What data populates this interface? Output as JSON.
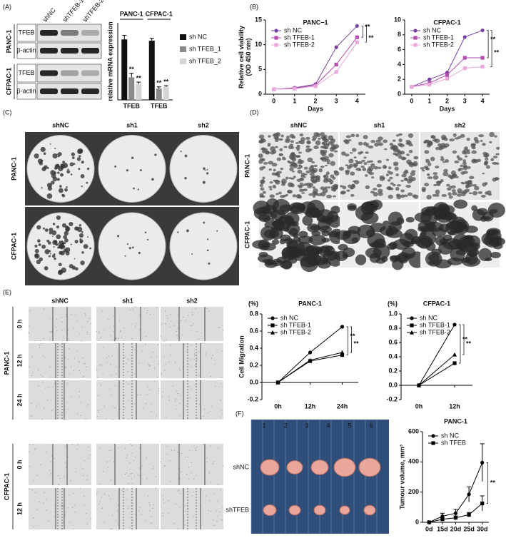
{
  "panel_labels": [
    "(A)",
    "(B)",
    "(C)",
    "(D)",
    "(E)",
    "(F)"
  ],
  "blot": {
    "lanes": [
      "shNC",
      "shTFEB-1",
      "shTFEB-2"
    ],
    "cell_lines": [
      "PANC-1",
      "CFPAC-1"
    ],
    "proteins": [
      "TFEB",
      "β-actin",
      "TFEB",
      "β-actin"
    ]
  },
  "colony": {
    "columns": [
      "shNC",
      "sh1",
      "sh2"
    ],
    "rows": [
      "PANC-1",
      "CFPAC-1"
    ]
  },
  "invasion": {
    "columns": [
      "shNC",
      "sh1",
      "sh2"
    ],
    "rows": [
      "PANC-1",
      "CFPAC-1"
    ]
  },
  "wound": {
    "columns": [
      "shNC",
      "sh1",
      "sh2"
    ],
    "groups": [
      "PANC-1",
      "CFPAC-1"
    ],
    "times": [
      [
        "0 h",
        "12 h",
        "24 h"
      ],
      [
        "0 h",
        "12 h"
      ]
    ]
  },
  "xenograft": {
    "rows": [
      "shNC",
      "shTFEB"
    ],
    "ruler": [
      "1",
      "2",
      "3",
      "4",
      "5",
      "6"
    ]
  },
  "chart_data": [
    {
      "type": "bar",
      "groups": [
        "PANC-1",
        "CFPAC-1"
      ],
      "categories": [
        "TFEB",
        "TFEB"
      ],
      "y_label": "relative mRNA expression",
      "ylim": [
        0,
        1.3
      ],
      "legend": "right",
      "series": [
        {
          "name": "sh NC",
          "color": "#111111",
          "values": [
            1.02,
            1.0
          ],
          "errors": [
            0.07,
            0.04
          ]
        },
        {
          "name": "sh TFEB_1",
          "color": "#8a8a8a",
          "values": [
            0.38,
            0.19
          ],
          "errors": [
            0.07,
            0.03
          ]
        },
        {
          "name": "sh TFEB_2",
          "color": "#d4d4d4",
          "values": [
            0.27,
            0.22
          ],
          "errors": [
            0.03,
            0.02
          ]
        }
      ],
      "annotations": [
        "**",
        "**",
        "**",
        "**"
      ]
    },
    {
      "type": "line",
      "title": "PANC−1",
      "x_label": "Days",
      "y_label": "Relative cell viability\n(OD 450 nm)",
      "x": [
        0,
        1,
        2,
        3,
        4
      ],
      "xlim": [
        -0.4,
        4.4
      ],
      "xticks": [
        0,
        1,
        2,
        3,
        4
      ],
      "ylim": [
        0,
        15
      ],
      "yticks": [
        0,
        5,
        10,
        15
      ],
      "legend": "upper left",
      "series": [
        {
          "name": "sh NC",
          "color": "#7a3f9e",
          "marker": "circle",
          "values": [
            1,
            1.3,
            2,
            9.5,
            13.8
          ]
        },
        {
          "name": "sh TFEB-1",
          "color": "#b24db0",
          "marker": "square",
          "values": [
            1,
            1.2,
            1.8,
            6,
            11.5
          ]
        },
        {
          "name": "sh TFEB-2",
          "color": "#eaa8dc",
          "marker": "square",
          "values": [
            1,
            1.1,
            1.6,
            4.5,
            10.5
          ]
        }
      ],
      "annotations": [
        "**",
        "**"
      ]
    },
    {
      "type": "line",
      "title": "CFPAC-1",
      "x_label": "Days",
      "x": [
        0,
        1,
        2,
        3,
        4
      ],
      "xlim": [
        -0.4,
        4.4
      ],
      "xticks": [
        0,
        1,
        2,
        3,
        4
      ],
      "ylim": [
        0,
        10
      ],
      "yticks": [
        0,
        2,
        4,
        6,
        8,
        10
      ],
      "legend": "upper left",
      "series": [
        {
          "name": "sh NC",
          "color": "#7a3f9e",
          "marker": "circle",
          "values": [
            1,
            2,
            2.9,
            7.7,
            8.6
          ]
        },
        {
          "name": "sh TFEB-1",
          "color": "#b24db0",
          "marker": "square",
          "values": [
            1,
            1.5,
            2.6,
            4.9,
            4.9
          ]
        },
        {
          "name": "sh TFEB-2",
          "color": "#eaa8dc",
          "marker": "square",
          "values": [
            1,
            1.3,
            2.1,
            3.5,
            3.7
          ]
        }
      ],
      "annotations": [
        "**",
        "**"
      ]
    },
    {
      "type": "line",
      "title": "PANC-1",
      "unit_label": "(%)",
      "y_label": "Cell Migration",
      "categories": [
        "0h",
        "12h",
        "24h"
      ],
      "ylim": [
        -0.2,
        0.8
      ],
      "yticks": [
        -0.2,
        {
          "value": 0,
          "label": "0.0"
        },
        0.2,
        0.4,
        0.6,
        0.8
      ],
      "legend": "upper left",
      "series": [
        {
          "name": "sh NC",
          "color": "#000000",
          "marker": "circle",
          "values": [
            0,
            0.35,
            0.65
          ]
        },
        {
          "name": "sh TFEB-1",
          "color": "#000000",
          "marker": "square",
          "values": [
            0,
            0.25,
            0.32
          ]
        },
        {
          "name": "sh TFEB-2",
          "color": "#000000",
          "marker": "triangle",
          "values": [
            0,
            0.26,
            0.35
          ]
        }
      ],
      "annotations": [
        "**",
        "**"
      ]
    },
    {
      "type": "line",
      "title": "CFPAC-1",
      "unit_label": "(%)",
      "categories": [
        "0h",
        "12h"
      ],
      "ylim": [
        -0.2,
        1.0
      ],
      "yticks": [
        -0.2,
        {
          "value": 0,
          "label": "0.0"
        },
        0.2,
        0.4,
        0.6,
        0.8,
        {
          "value": 1,
          "label": "1.0"
        }
      ],
      "legend": "upper left",
      "series": [
        {
          "name": "sh NC",
          "color": "#000000",
          "marker": "circle",
          "values": [
            0,
            0.85
          ]
        },
        {
          "name": "sh TFEB-1",
          "color": "#000000",
          "marker": "square",
          "values": [
            0,
            0.31
          ]
        },
        {
          "name": "sh TFEB-2",
          "color": "#000000",
          "marker": "triangle",
          "values": [
            0,
            0.43
          ]
        }
      ],
      "annotations": [
        "**",
        "**"
      ]
    },
    {
      "type": "line",
      "title": "PANC-1",
      "y_label": "Tumour volume, mm³",
      "categories": [
        "0d",
        "15d",
        "20d",
        "25d",
        "30d"
      ],
      "ylim": [
        0,
        600
      ],
      "yticks": [
        0,
        200,
        400,
        600
      ],
      "legend": "upper left",
      "series": [
        {
          "name": "sh NC",
          "color": "#000000",
          "marker": "circle",
          "values": [
            0,
            40,
            60,
            185,
            395
          ],
          "errors": [
            0,
            20,
            25,
            50,
            125
          ]
        },
        {
          "name": "sh TFEB",
          "color": "#000000",
          "marker": "square",
          "values": [
            0,
            20,
            30,
            50,
            125
          ],
          "errors": [
            0,
            10,
            12,
            15,
            50
          ]
        }
      ],
      "annotations": [
        "**"
      ]
    }
  ]
}
